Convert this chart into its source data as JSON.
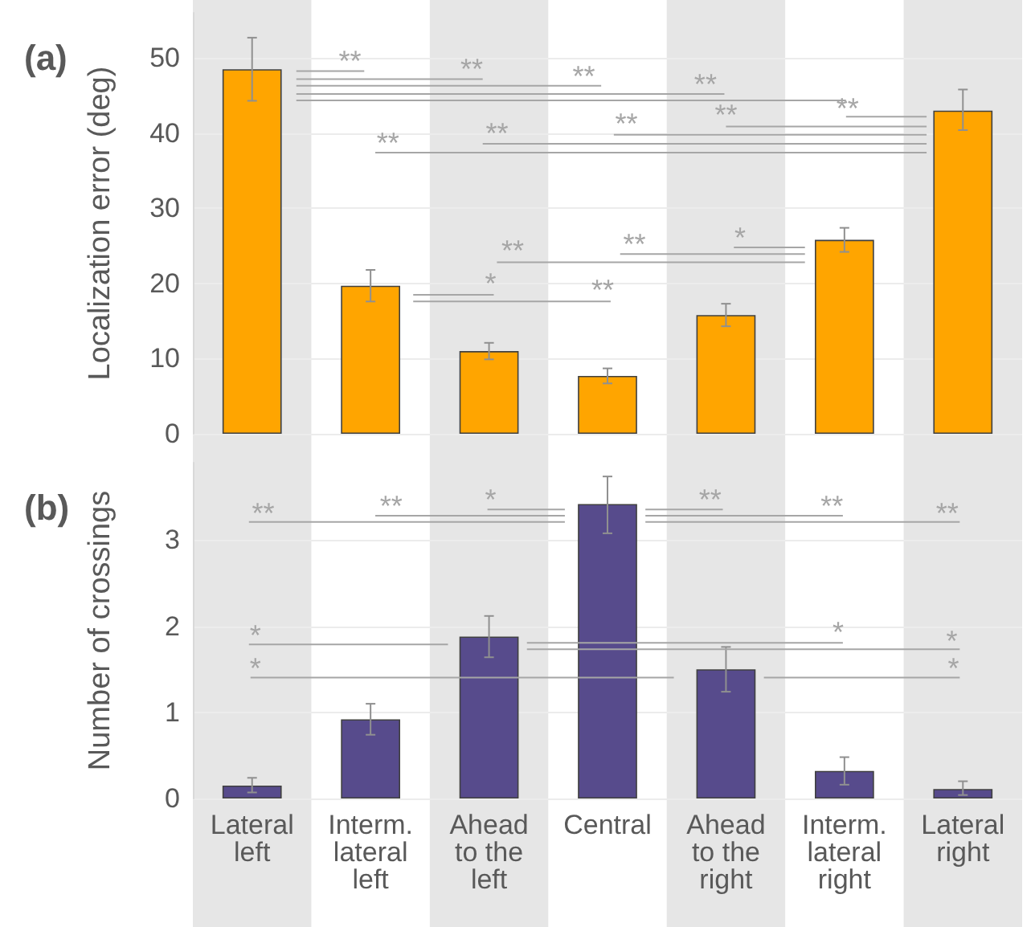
{
  "chart_data": [
    {
      "type": "bar",
      "title": "(a)",
      "ylabel": "Localization error (deg)",
      "categories": [
        "Lateral left",
        "Interm. lateral left",
        "Ahead to the left",
        "Central",
        "Ahead to the right",
        "Interm. lateral right",
        "Lateral right"
      ],
      "values": [
        48.5,
        19.7,
        11,
        7.7,
        15.8,
        25.8,
        43
      ],
      "color": "#ffa500",
      "errors": [
        [
          44.3,
          52.7
        ],
        [
          17.6,
          21.8
        ],
        [
          9.9,
          12.1
        ],
        [
          6.7,
          8.7
        ],
        [
          14.3,
          17.3
        ],
        [
          24.2,
          27.4
        ],
        [
          40.4,
          45.8
        ]
      ],
      "ylim": [
        0,
        56
      ],
      "yticks": [
        0,
        10,
        20,
        30,
        40,
        50
      ],
      "grid": "y",
      "tick_labels": "y",
      "bands": [
        {
          "axis": "x",
          "from": "Lateral left",
          "to": "Lateral left",
          "color": "#e6e6e6"
        },
        {
          "axis": "x",
          "from": "Ahead to the left",
          "to": "Ahead to the left",
          "color": "#e6e6e6"
        },
        {
          "axis": "x",
          "from": "Ahead to the right",
          "to": "Ahead to the right",
          "color": "#e6e6e6"
        },
        {
          "axis": "x",
          "from": "Lateral right",
          "to": "Lateral right",
          "color": "#e6e6e6"
        }
      ],
      "annotations": [
        "**",
        "**",
        "**",
        "**",
        "**",
        "**",
        "**",
        "**",
        "**",
        "**",
        "**",
        "*",
        "*",
        "**"
      ]
    },
    {
      "type": "bar",
      "title": "(b)",
      "ylabel": "Number of crossings",
      "categories": [
        "Lateral left",
        "Interm. lateral left",
        "Ahead to the left",
        "Central",
        "Ahead to the right",
        "Interm. lateral right",
        "Lateral right"
      ],
      "values": [
        0.15,
        0.92,
        1.88,
        3.42,
        1.5,
        0.32,
        0.11
      ],
      "color": "#574b8c",
      "errors": [
        [
          0.07,
          0.24
        ],
        [
          0.74,
          1.1
        ],
        [
          1.64,
          2.12
        ],
        [
          3.08,
          3.74
        ],
        [
          1.24,
          1.76
        ],
        [
          0.16,
          0.48
        ],
        [
          0.04,
          0.2
        ]
      ],
      "ylim": [
        0,
        3.9
      ],
      "yticks": [
        0,
        1,
        2,
        3
      ],
      "grid": "y",
      "bands": [
        {
          "axis": "x",
          "from": "Lateral left",
          "to": "Lateral left",
          "color": "#e6e6e6"
        },
        {
          "axis": "x",
          "from": "Ahead to the left",
          "to": "Ahead to the left",
          "color": "#e6e6e6"
        },
        {
          "axis": "x",
          "from": "Ahead to the right",
          "to": "Ahead to the right",
          "color": "#e6e6e6"
        },
        {
          "axis": "x",
          "from": "Lateral right",
          "to": "Lateral right",
          "color": "#e6e6e6"
        }
      ],
      "annotations": [
        "**",
        "**",
        "*",
        "**",
        "**",
        "**",
        "*",
        "*",
        "*",
        "*",
        "*"
      ]
    }
  ]
}
